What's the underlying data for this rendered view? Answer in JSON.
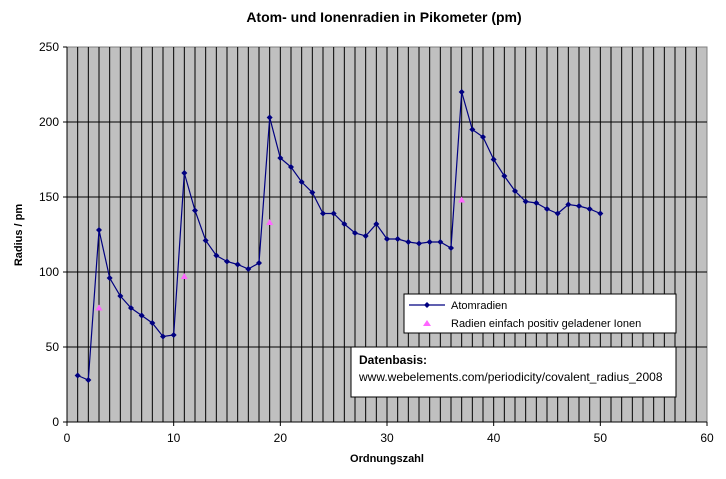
{
  "chart_data": {
    "type": "line",
    "title": "Atom- und Ionenradien in Pikometer (pm)",
    "xlabel": "Ordnungszahl",
    "ylabel": "Radius / pm",
    "xlim": [
      0,
      60
    ],
    "ylim": [
      0,
      250
    ],
    "x_ticks": [
      0,
      10,
      20,
      30,
      40,
      50,
      60
    ],
    "y_ticks": [
      0,
      50,
      100,
      150,
      200,
      250
    ],
    "grid": "vertical lines at every x unit, horizontal lines at every 50",
    "legend_position": "right",
    "series": [
      {
        "name": "Atomradien",
        "color": "#000080",
        "marker": "diamond",
        "x": [
          1,
          2,
          3,
          4,
          5,
          6,
          7,
          8,
          9,
          10,
          11,
          12,
          13,
          14,
          15,
          16,
          17,
          18,
          19,
          20,
          21,
          22,
          23,
          24,
          25,
          26,
          27,
          28,
          29,
          30,
          31,
          32,
          33,
          34,
          35,
          36,
          37,
          38,
          39,
          40,
          41,
          42,
          43,
          44,
          45,
          46,
          47,
          48,
          49,
          50
        ],
        "y": [
          31,
          28,
          128,
          96,
          84,
          76,
          71,
          66,
          57,
          58,
          166,
          141,
          121,
          111,
          107,
          105,
          102,
          106,
          203,
          176,
          170,
          160,
          153,
          139,
          139,
          132,
          126,
          124,
          132,
          122,
          122,
          120,
          119,
          120,
          120,
          116,
          220,
          195,
          190,
          175,
          164,
          154,
          147,
          146,
          142,
          139,
          145,
          144,
          142,
          139
        ]
      },
      {
        "name": "Radien einfach positiv geladener Ionen",
        "color": "#ff66ff",
        "marker": "triangle",
        "x": [
          3,
          11,
          19,
          37
        ],
        "y": [
          76,
          97,
          133,
          148
        ]
      }
    ],
    "annotation": {
      "title": "Datenbasis:",
      "text": "www.webelements.com/periodicity/covalent_radius_2008"
    }
  },
  "colors": {
    "plot_background": "#c0c0c0",
    "gridline": "#000000",
    "series_line": "#000080",
    "ion_marker": "#ff66ff"
  }
}
